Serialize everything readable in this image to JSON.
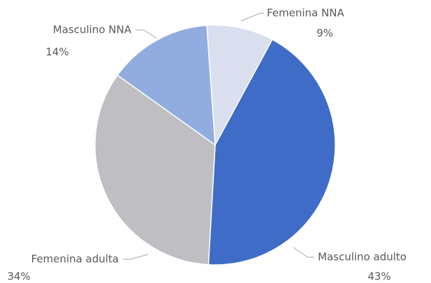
{
  "chart_data": {
    "type": "pie",
    "categories": [
      "Femenina NNA",
      "Masculino adulto",
      "Femenina adulta",
      "Masculino NNA"
    ],
    "values": [
      9,
      43,
      34,
      14
    ],
    "value_labels": [
      "9%",
      "43%",
      "34%",
      "14%"
    ],
    "colors": [
      "#d9dfee",
      "#3e6cc6",
      "#bfbec3",
      "#91acdf"
    ]
  }
}
